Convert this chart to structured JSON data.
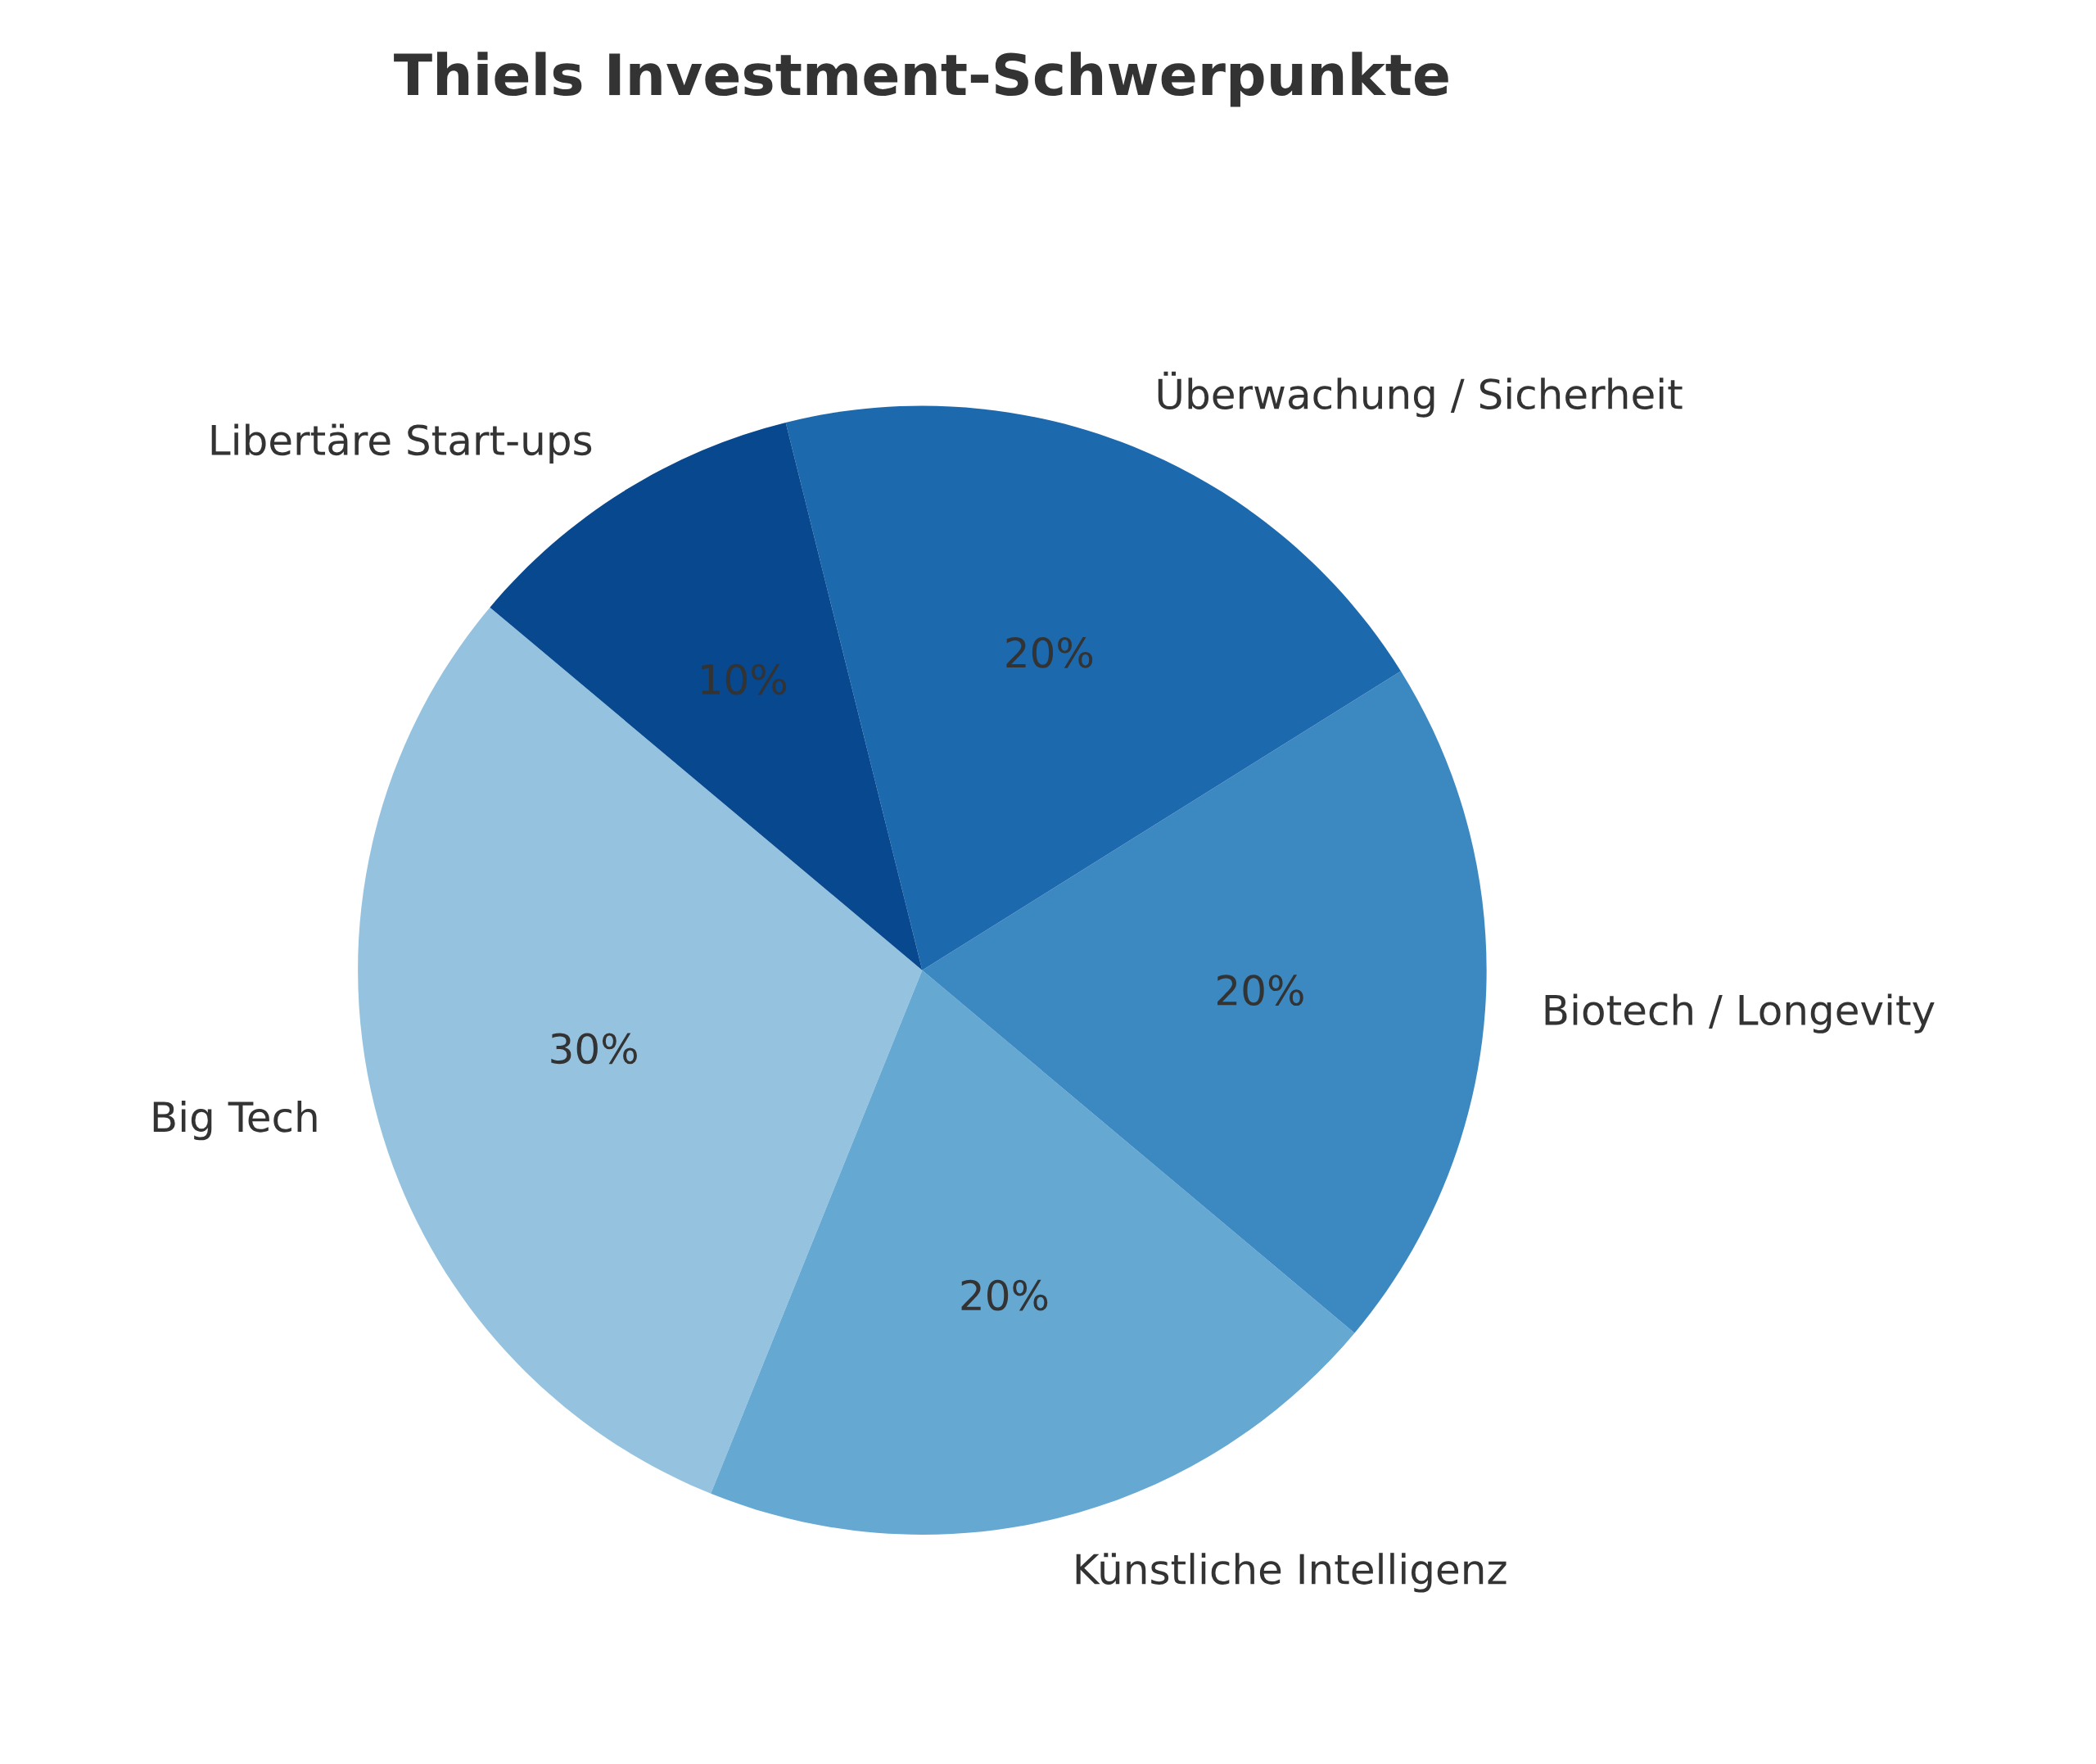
{
  "chart_data": {
    "type": "pie",
    "title": "Thiels Investment-Schwerpunkte",
    "categories": [
      "Big Tech",
      "Künstliche Intelligenz",
      "Biotech / Longevity",
      "Überwachung / Sicherheit",
      "Libertäre Start-ups"
    ],
    "values": [
      30,
      20,
      20,
      20,
      10
    ],
    "value_labels": [
      "30%",
      "20%",
      "20%",
      "20%",
      "10%"
    ],
    "colors": [
      "#95c3df",
      "#65a8d2",
      "#3c89c1",
      "#1d69ae",
      "#08488e"
    ]
  }
}
